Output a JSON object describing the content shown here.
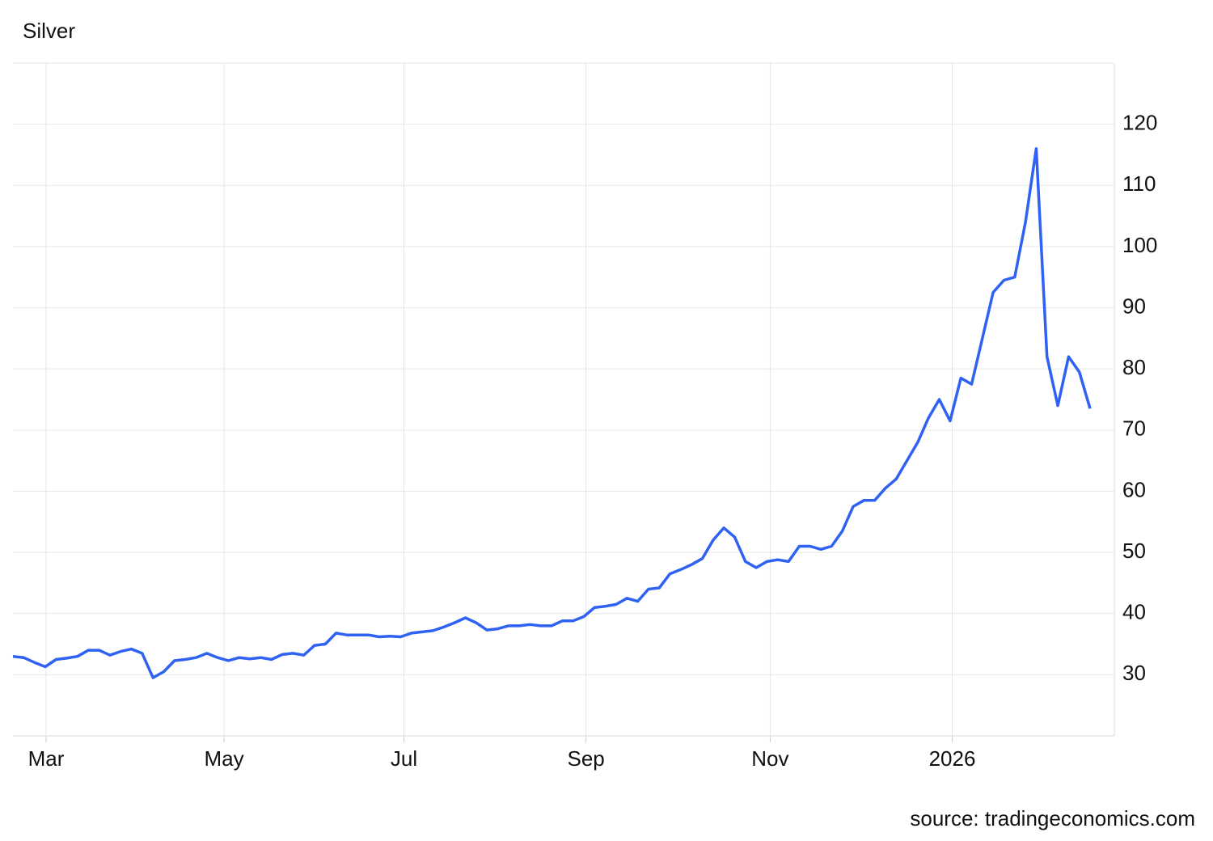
{
  "chart_data": {
    "type": "line",
    "title": "Silver",
    "source": "source: tradingeconomics.com",
    "series": [
      {
        "name": "Silver",
        "color": "#2f62f3",
        "values": [
          33,
          32.8,
          32,
          31.3,
          32.5,
          32.7,
          33,
          34,
          34,
          33.2,
          33.8,
          34.2,
          33.5,
          29.5,
          30.5,
          32.3,
          32.5,
          32.8,
          33.5,
          32.8,
          32.3,
          32.8,
          32.6,
          32.8,
          32.5,
          33.3,
          33.5,
          33.2,
          34.8,
          35,
          36.8,
          36.5,
          36.5,
          36.5,
          36.2,
          36.3,
          36.2,
          36.8,
          37,
          37.2,
          37.8,
          38.5,
          39.3,
          38.5,
          37.3,
          37.5,
          38,
          38,
          38.2,
          38,
          38,
          38.8,
          38.8,
          39.5,
          41,
          41.2,
          41.5,
          42.5,
          42,
          44,
          44.2,
          46.5,
          47.2,
          48,
          49,
          52,
          54,
          52.5,
          48.5,
          47.5,
          48.5,
          48.8,
          48.5,
          51,
          51,
          50.5,
          51,
          53.5,
          57.5,
          58.5,
          58.5,
          60.5,
          62,
          65,
          68,
          72,
          75,
          71.5,
          78.5,
          77.5,
          85,
          92.5,
          94.5,
          95,
          104,
          116,
          82,
          74,
          82,
          79.5,
          73.5
        ]
      }
    ],
    "xlim": [
      0,
      102.25
    ],
    "xticks": [
      {
        "value": 3.08,
        "label": "Mar"
      },
      {
        "value": 19.6,
        "label": "May"
      },
      {
        "value": 36.3,
        "label": "Jul"
      },
      {
        "value": 53.2,
        "label": "Sep"
      },
      {
        "value": 70.3,
        "label": "Nov"
      },
      {
        "value": 87.2,
        "label": "2026"
      }
    ],
    "ylim": [
      20,
      130
    ],
    "yticks": [
      30,
      40,
      50,
      60,
      70,
      80,
      90,
      100,
      110,
      120
    ],
    "grid": true
  }
}
